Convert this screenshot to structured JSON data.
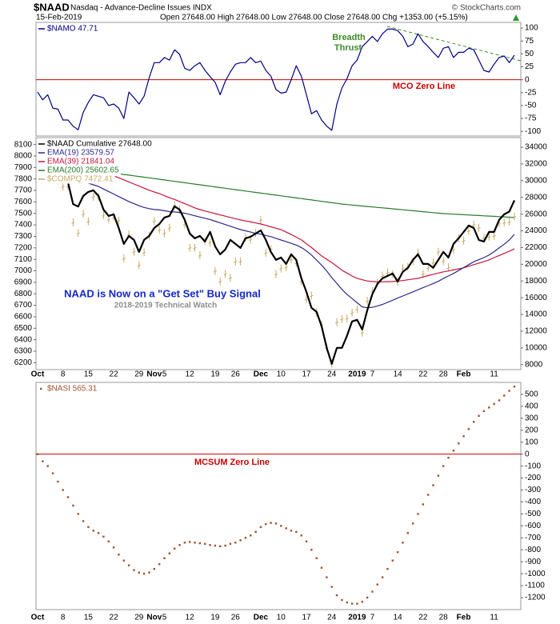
{
  "header": {
    "symbol": "$NAAD",
    "description": "Nasdaq - Advance-Decline Issues INDX",
    "credit": "© StockCharts.com",
    "date": "15-Feb-2019",
    "quote": "Open 27648.00 High 27648.00 Low 27648.00 Close 27648.00 Chg +1353.00 (+5.15%)"
  },
  "chart_data": [
    {
      "type": "line",
      "ylim": [
        -109,
        111
      ],
      "yticks": [
        100,
        75,
        50,
        25,
        0,
        -25,
        -50,
        -75,
        -100
      ],
      "yaxis": "right",
      "reference_line": {
        "value": 0,
        "label": "MCO Zero Line",
        "color": "#cc0000"
      },
      "annotations": [
        {
          "text": "Breadth",
          "color": "#3c8c28"
        },
        {
          "text": "Thrust",
          "color": "#3c8c28"
        }
      ],
      "series": [
        {
          "name": "$NAMO 47.71",
          "color": "#000080",
          "style": "line",
          "values": [
            -24,
            -39,
            -29,
            -55,
            -57,
            -78,
            -78,
            -90,
            -97,
            -63,
            -44,
            -29,
            -32,
            -35,
            -50,
            -47,
            -55,
            -75,
            -24,
            -35,
            -47,
            -32,
            4,
            33,
            33,
            43,
            38,
            58,
            49,
            22,
            18,
            27,
            33,
            18,
            6,
            -5,
            -29,
            -3,
            15,
            30,
            33,
            33,
            43,
            33,
            36,
            18,
            7,
            -19,
            -26,
            -24,
            0,
            27,
            7,
            -29,
            -66,
            -60,
            -78,
            -90,
            -98,
            -47,
            -16,
            2,
            27,
            38,
            64,
            74,
            84,
            74,
            89,
            98,
            98,
            95,
            84,
            64,
            69,
            89,
            74,
            64,
            53,
            43,
            61,
            64,
            43,
            53,
            53,
            61,
            58,
            38,
            18,
            15,
            30,
            43,
            46,
            33,
            47.71
          ]
        }
      ]
    },
    {
      "type": "line",
      "ylim": [
        6140,
        8160
      ],
      "yticks": [
        8100,
        8000,
        7900,
        7800,
        7700,
        7600,
        7500,
        7400,
        7300,
        7200,
        7100,
        7000,
        6900,
        6800,
        6700,
        6600,
        6500,
        6400,
        6300,
        6200
      ],
      "yaxis": "left",
      "y2lim": [
        7400,
        35150
      ],
      "y2ticks": [
        34000,
        32000,
        30000,
        28000,
        26000,
        24000,
        22000,
        20000,
        18000,
        16000,
        14000,
        12000,
        10000,
        8000
      ],
      "annotations": [
        {
          "text": "NAAD is Now on a \"Get Set\" Buy Signal",
          "color": "#1428c8"
        },
        {
          "text": "2018-2019 Technical Watch",
          "color": "#8c8c8c"
        }
      ],
      "categories": [
        "Oct",
        null,
        null,
        null,
        null,
        "8",
        null,
        null,
        null,
        null,
        "15",
        null,
        null,
        null,
        null,
        "22",
        null,
        null,
        null,
        null,
        "29",
        null,
        null,
        "Nov",
        null,
        "5",
        null,
        null,
        null,
        null,
        "12",
        null,
        null,
        null,
        null,
        "19",
        null,
        null,
        null,
        "26",
        null,
        null,
        null,
        null,
        "Dec",
        null,
        null,
        null,
        "10",
        null,
        null,
        null,
        null,
        "17",
        null,
        null,
        null,
        null,
        "24",
        null,
        null,
        null,
        null,
        "2019",
        null,
        null,
        "7",
        null,
        null,
        null,
        null,
        "14",
        null,
        null,
        null,
        null,
        "22",
        null,
        null,
        null,
        "28",
        null,
        null,
        null,
        "Feb",
        null,
        null,
        null,
        null,
        null,
        "11",
        null,
        null,
        null,
        null
      ],
      "series": [
        {
          "name": "$NAAD Cumulative 27648.00",
          "color": "#000000",
          "style": "line",
          "axis": "y2",
          "values": [
            31300,
            31040,
            30750,
            30370,
            30180,
            30080,
            29800,
            27200,
            26900,
            28170,
            28650,
            28840,
            28170,
            26540,
            25780,
            25970,
            24340,
            22430,
            23390,
            22910,
            21480,
            22910,
            23390,
            24340,
            24820,
            25590,
            25780,
            26930,
            26540,
            25300,
            23680,
            23100,
            23390,
            22720,
            23870,
            22150,
            21190,
            21760,
            22910,
            22430,
            21950,
            23100,
            23290,
            23680,
            24060,
            22910,
            21480,
            20520,
            20810,
            20040,
            21190,
            20520,
            18320,
            16700,
            14780,
            14310,
            12590,
            10000,
            8090,
            10000,
            10000,
            11440,
            13160,
            13350,
            12200,
            14500,
            16410,
            17650,
            18320,
            18610,
            18900,
            17940,
            19090,
            19570,
            20520,
            21190,
            20040,
            20040,
            19570,
            20520,
            21480,
            20810,
            22430,
            23100,
            23870,
            24630,
            24340,
            22910,
            22720,
            23870,
            23870,
            25300,
            25970,
            26295,
            27648
          ]
        },
        {
          "name": "EMA(19) 23579.57",
          "color": "#2a2a8c",
          "style": "line",
          "axis": "y2",
          "values": [
            31200,
            31150,
            31080,
            30990,
            30900,
            30810,
            30700,
            30400,
            30100,
            29900,
            29700,
            29500,
            29300,
            29000,
            28700,
            28400,
            28100,
            27800,
            27500,
            27250,
            27000,
            26800,
            26650,
            26550,
            26500,
            26400,
            26300,
            26250,
            26200,
            26100,
            25950,
            25800,
            25650,
            25500,
            25350,
            25150,
            24950,
            24750,
            24550,
            24350,
            24150,
            24000,
            23850,
            23700,
            23600,
            23450,
            23300,
            23100,
            22900,
            22700,
            22500,
            22300,
            22000,
            21600,
            21100,
            20500,
            19900,
            19200,
            18400,
            17700,
            17000,
            16400,
            15900,
            15400,
            14900,
            14800,
            14850,
            15000,
            15200,
            15450,
            15700,
            15950,
            16200,
            16450,
            16700,
            16950,
            17200,
            17450,
            17700,
            17950,
            18300,
            18600,
            18900,
            19250,
            19600,
            19950,
            20300,
            20550,
            20800,
            21100,
            21500,
            21950,
            22400,
            22900,
            23579.57
          ]
        },
        {
          "name": "EMA(39) 21841.04",
          "color": "#c8143c",
          "style": "line",
          "axis": "y2",
          "values": [
            31500,
            31480,
            31450,
            31400,
            31350,
            31300,
            31250,
            31150,
            31050,
            30950,
            30850,
            30760,
            30690,
            30620,
            30590,
            30560,
            30350,
            30100,
            29850,
            29600,
            29350,
            29100,
            28850,
            28650,
            28450,
            28200,
            27950,
            27750,
            27500,
            27250,
            27000,
            26750,
            26540,
            26380,
            26220,
            26060,
            25900,
            25750,
            25600,
            25450,
            25300,
            25180,
            25060,
            24940,
            24820,
            24650,
            24480,
            24310,
            24150,
            23850,
            23550,
            23250,
            22910,
            22450,
            22000,
            21500,
            21000,
            20600,
            20200,
            19750,
            19280,
            18950,
            18600,
            18320,
            18150,
            18000,
            17940,
            17900,
            17900,
            17920,
            17940,
            18000,
            18050,
            18150,
            18230,
            18320,
            18480,
            18640,
            18800,
            18950,
            19090,
            19200,
            19320,
            19450,
            19570,
            19760,
            19950,
            20140,
            20330,
            20520,
            20800,
            21050,
            21300,
            21550,
            21841.04
          ]
        },
        {
          "name": "EMA(200) 25602.65",
          "color": "#2a7a2a",
          "style": "line",
          "axis": "y2",
          "values": [
            32100,
            32020,
            31940,
            31860,
            31780,
            31700,
            31620,
            31540,
            31460,
            31380,
            31300,
            31220,
            31140,
            31060,
            30980,
            30900,
            30820,
            30740,
            30660,
            30580,
            30500,
            30417,
            30334,
            30251,
            30168,
            30085,
            30002,
            29919,
            29836,
            29753,
            29670,
            29587,
            29504,
            29421,
            29338,
            29255,
            29172,
            29089,
            29006,
            28923,
            28840,
            28758,
            28676,
            28594,
            28512,
            28430,
            28348,
            28266,
            28184,
            28102,
            28020,
            27938,
            27856,
            27774,
            27692,
            27610,
            27528,
            27446,
            27364,
            27282,
            27200,
            27143,
            27086,
            27029,
            26972,
            26915,
            26858,
            26801,
            26744,
            26687,
            26630,
            26573,
            26516,
            26459,
            26402,
            26345,
            26288,
            26231,
            26174,
            26117,
            26060,
            26027,
            25994,
            25961,
            25928,
            25895,
            25862,
            25829,
            25796,
            25763,
            25730,
            25697,
            25664,
            25631,
            25602.65
          ]
        },
        {
          "name": "$COMPQ 7472.41",
          "color": "#c8aa64",
          "style": "hlc",
          "values": [
            8037,
            7999,
            8025,
            7879,
            7788,
            7735,
            7738,
            7422,
            7329,
            7497,
            7431,
            7645,
            7643,
            7485,
            7449,
            7468,
            7437,
            7108,
            7318,
            7167,
            7050,
            7162,
            7306,
            7434,
            7357,
            7328,
            7375,
            7571,
            7530,
            7407,
            7200,
            7201,
            7136,
            7259,
            7247,
            6999,
            6909,
            6973,
            6939,
            7082,
            7082,
            7292,
            7274,
            7331,
            7442,
            7159,
            7189,
            6970,
            7021,
            7032,
            7099,
            7070,
            6911,
            6753,
            6784,
            6637,
            6529,
            6333,
            6193,
            6554,
            6580,
            6585,
            6635,
            6666,
            6463,
            6739,
            6823,
            6897,
            6958,
            6986,
            6971,
            6905,
            7024,
            7034,
            7084,
            7157,
            6970,
            7026,
            7073,
            7165,
            7085,
            7028,
            7184,
            7282,
            7263,
            7348,
            7403,
            7375,
            7288,
            7298,
            7307,
            7415,
            7420,
            7427,
            7472.41
          ]
        }
      ]
    },
    {
      "type": "line",
      "ylim": [
        -1300,
        600
      ],
      "yticks": [
        500,
        400,
        300,
        200,
        100,
        0,
        -100,
        -200,
        -300,
        -400,
        -500,
        -600,
        -700,
        -800,
        -900,
        -1000,
        -1100,
        -1200
      ],
      "yaxis": "right",
      "reference_line": {
        "value": 0,
        "label": "MCSUM Zero Line",
        "color": "#cc0000"
      },
      "categories": [
        "Oct",
        null,
        null,
        null,
        null,
        "8",
        null,
        null,
        null,
        null,
        "15",
        null,
        null,
        null,
        null,
        "22",
        null,
        null,
        null,
        null,
        "29",
        null,
        null,
        "Nov",
        null,
        "5",
        null,
        null,
        null,
        null,
        "12",
        null,
        null,
        null,
        null,
        "19",
        null,
        null,
        null,
        "26",
        null,
        null,
        null,
        null,
        "Dec",
        null,
        null,
        null,
        "10",
        null,
        null,
        null,
        null,
        "17",
        null,
        null,
        null,
        null,
        "24",
        null,
        null,
        null,
        null,
        "2019",
        null,
        null,
        "7",
        null,
        null,
        null,
        null,
        "14",
        null,
        null,
        null,
        null,
        "22",
        null,
        null,
        null,
        "28",
        null,
        null,
        null,
        "Feb",
        null,
        null,
        null,
        null,
        null,
        "11",
        null,
        null,
        null,
        null
      ],
      "series": [
        {
          "name": "$NASI 565.31",
          "color": "#a0522d",
          "style": "dots",
          "values": [
            0,
            -60,
            -100,
            -160,
            -230,
            -300,
            -360,
            -430,
            -500,
            -560,
            -610,
            -640,
            -660,
            -690,
            -730,
            -780,
            -840,
            -890,
            -930,
            -970,
            -990,
            -1000,
            -990,
            -960,
            -920,
            -870,
            -830,
            -790,
            -760,
            -740,
            -735,
            -740,
            -745,
            -750,
            -760,
            -765,
            -770,
            -765,
            -750,
            -740,
            -720,
            -700,
            -680,
            -650,
            -610,
            -585,
            -575,
            -580,
            -600,
            -620,
            -640,
            -650,
            -680,
            -730,
            -800,
            -870,
            -950,
            -1030,
            -1110,
            -1180,
            -1220,
            -1240,
            -1250,
            -1250,
            -1235,
            -1200,
            -1150,
            -1090,
            -1030,
            -960,
            -890,
            -820,
            -740,
            -660,
            -580,
            -500,
            -420,
            -340,
            -260,
            -180,
            -100,
            -30,
            30,
            90,
            150,
            210,
            270,
            320,
            360,
            390,
            420,
            450,
            490,
            530,
            565.31
          ]
        }
      ]
    }
  ]
}
